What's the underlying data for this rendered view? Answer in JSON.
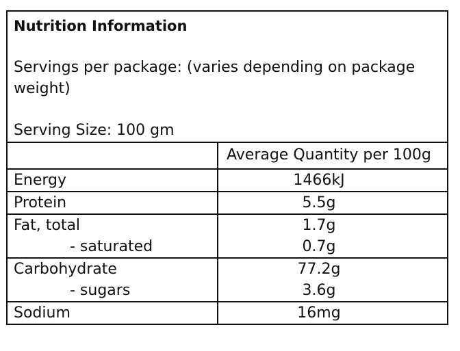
{
  "title": "Nutrition Information",
  "servings": "Servings per package: (varies depending on package weight)",
  "serving_size": "Serving Size: 100 gm",
  "table": {
    "header": "Average Quantity per 100g",
    "groups": [
      [
        [
          "Energy",
          "1466kJ"
        ]
      ],
      [
        [
          "Protein",
          "5.5g"
        ]
      ],
      [
        [
          "Fat, total",
          "1.7g"
        ],
        [
          "- saturated",
          "0.7g"
        ]
      ],
      [
        [
          "Carbohydrate",
          "77.2g"
        ],
        [
          "- sugars",
          "3.6g"
        ]
      ],
      [
        [
          "Sodium",
          "16mg"
        ]
      ]
    ]
  }
}
